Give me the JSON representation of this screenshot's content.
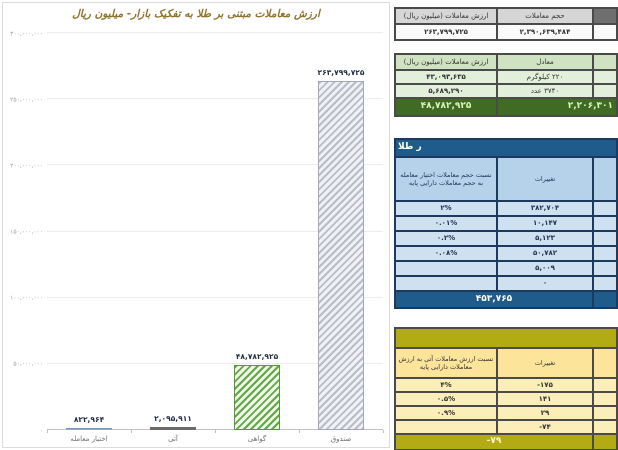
{
  "chart_data": {
    "type": "bar",
    "title": "ارزش معاملات مبتنی بر طلا به تفکیک بازار- میلیون ریال",
    "categories": [
      "اختیار معامله",
      "آتی",
      "گواهی",
      "صندوق"
    ],
    "ids": [
      "options",
      "futures",
      "certificates",
      "funds"
    ],
    "values": [
      822964,
      2095911,
      48782925,
      263799725
    ],
    "value_labels": [
      "۸۲۲,۹۶۴",
      "۲,۰۹۵,۹۱۱",
      "۴۸,۷۸۲,۹۲۵",
      "۲۶۳,۷۹۹,۷۲۵"
    ],
    "xlabel": "",
    "ylabel": "",
    "ylim": [
      0,
      300000000
    ],
    "ytick_labels": [
      "۰",
      "۵۰,۰۰۰,۰۰۰",
      "۱۰۰,۰۰۰,۰۰۰",
      "۱۵۰,۰۰۰,۰۰۰",
      "۲۰۰,۰۰۰,۰۰۰",
      "۲۵۰,۰۰۰,۰۰۰",
      "۳۰۰,۰۰۰,۰۰۰"
    ],
    "grid": true,
    "legend": false
  },
  "tables": {
    "market": {
      "headers": [
        "ارزش معاملات (میلیون ریال)",
        "حجم معاملات"
      ],
      "row": [
        "۲۶۳,۷۹۹,۷۲۵",
        "۲,۳۹۰,۶۳۹,۴۸۴"
      ]
    },
    "equivalent": {
      "headers": [
        "ارزش معاملات (میلیون ریال)",
        "معادل"
      ],
      "rows": [
        [
          "۴۳,۰۹۳,۶۳۵",
          "۲۲۰ کیلوگرم"
        ],
        [
          "۵,۶۸۹,۲۹۰",
          "۳۷۴۰ عدد"
        ]
      ],
      "total": [
        "۴۸,۷۸۲,۹۲۵",
        "۲,۲۰۶,۳۰۱"
      ]
    },
    "options_ratio": {
      "title": "ر طلا",
      "headers": [
        "نسبت حجم معاملات اختیار معامله به حجم معاملات دارایی پایه",
        "تغییرات"
      ],
      "rows": [
        [
          "۲%",
          "۳۸۲,۷۰۴"
        ],
        [
          "۰.۰۱%",
          "۱۰,۱۴۷"
        ],
        [
          "۰.۲%",
          "۵,۱۲۳"
        ],
        [
          "۰.۰۸%",
          "۵۰,۷۸۲"
        ],
        [
          "",
          "۵,۰۰۹"
        ],
        [
          "",
          "۰"
        ]
      ],
      "total": "۴۵۳,۷۶۵"
    },
    "futures_ratio": {
      "title": "",
      "headers": [
        "نسبت ارزش معاملات آتی به ارزش معاملات دارایی پایه",
        "تغییرات"
      ],
      "rows": [
        [
          "۴%",
          "-۱۷۵"
        ],
        [
          "۰.۵%",
          "۱۴۱"
        ],
        [
          "۰.۹%",
          "۲۹"
        ],
        [
          "",
          "-۷۴"
        ]
      ],
      "total": "-۷۹"
    }
  }
}
